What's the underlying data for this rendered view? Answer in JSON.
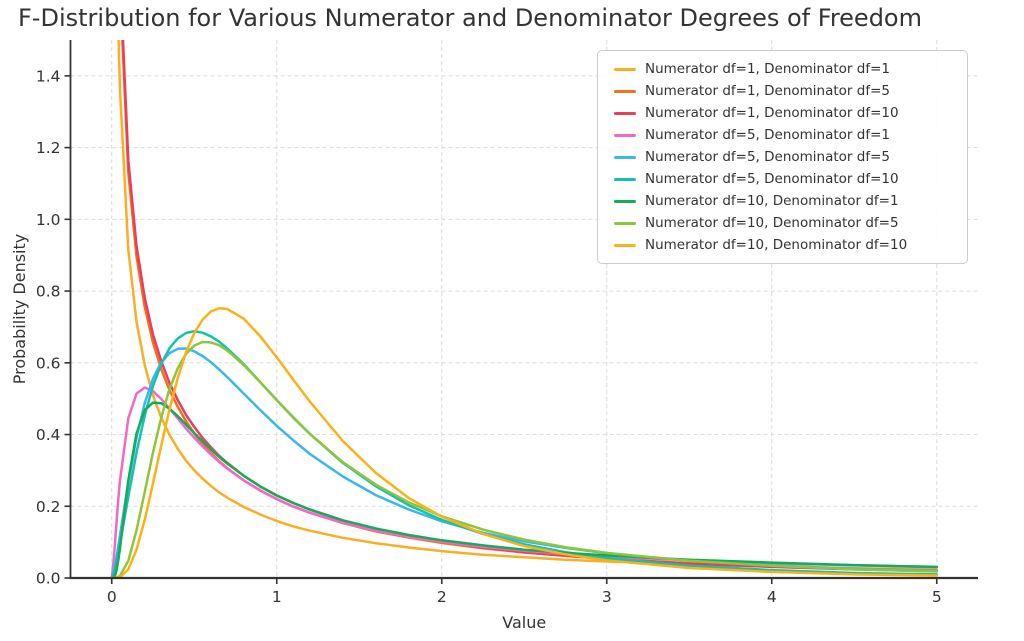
{
  "chart_data": {
    "type": "line",
    "title": "F-Distribution for Various Numerator and Denominator Degrees of Freedom",
    "xlabel": "Value",
    "ylabel": "Probability Density",
    "xlim": [
      -0.25,
      5.25
    ],
    "ylim": [
      0,
      1.5
    ],
    "xticks": [
      0,
      1,
      2,
      3,
      4,
      5
    ],
    "xtick_labels": [
      "0",
      "1",
      "2",
      "3",
      "4",
      "5"
    ],
    "yticks": [
      0.0,
      0.2,
      0.4,
      0.6,
      0.8,
      1.0,
      1.2,
      1.4
    ],
    "ytick_labels": [
      "0.0",
      "0.2",
      "0.4",
      "0.6",
      "0.8",
      "1.0",
      "1.2",
      "1.4"
    ],
    "grid": {
      "visible": true,
      "style": "dashed",
      "color": "#dcdcdc"
    },
    "legend_position": "upper right",
    "axis_color": "#333333",
    "x": [
      0,
      0.01,
      0.02,
      0.03,
      0.04,
      0.05,
      0.1,
      0.15,
      0.2,
      0.25,
      0.3,
      0.35,
      0.4,
      0.45,
      0.5,
      0.55,
      0.6,
      0.65,
      0.7,
      0.8,
      0.9,
      1.0,
      1.1,
      1.2,
      1.4,
      1.6,
      1.8,
      2.0,
      2.25,
      2.5,
      2.75,
      3.0,
      3.5,
      4.0,
      4.5,
      5.0
    ],
    "series": [
      {
        "name": "Numerator df=1, Denominator df=1",
        "color": "#fbae24",
        "y": [
          null,
          3.15,
          2.21,
          1.79,
          1.53,
          1.36,
          0.915,
          0.715,
          0.593,
          0.509,
          0.447,
          0.399,
          0.36,
          0.327,
          0.3,
          0.277,
          0.257,
          0.239,
          0.224,
          0.198,
          0.177,
          0.159,
          0.144,
          0.132,
          0.112,
          0.097,
          0.085,
          0.075,
          0.065,
          0.058,
          0.051,
          0.046,
          0.038,
          0.032,
          0.027,
          0.024
        ]
      },
      {
        "name": "Numerator df=1, Denominator df=5",
        "color": "#f3701d",
        "y": [
          null,
          3.77,
          2.65,
          2.15,
          1.85,
          1.65,
          1.131,
          0.897,
          0.755,
          0.656,
          0.582,
          0.524,
          0.477,
          0.437,
          0.403,
          0.374,
          0.349,
          0.326,
          0.306,
          0.272,
          0.244,
          0.22,
          0.199,
          0.182,
          0.153,
          0.13,
          0.113,
          0.098,
          0.083,
          0.071,
          0.062,
          0.054,
          0.041,
          0.033,
          0.026,
          0.021
        ]
      },
      {
        "name": "Numerator df=1, Denominator df=10",
        "color": "#eb3e5b",
        "y": [
          null,
          3.87,
          2.72,
          2.21,
          1.9,
          1.69,
          1.165,
          0.926,
          0.78,
          0.679,
          0.604,
          0.544,
          0.496,
          0.455,
          0.421,
          0.391,
          0.365,
          0.341,
          0.321,
          0.285,
          0.255,
          0.23,
          0.209,
          0.191,
          0.16,
          0.136,
          0.117,
          0.101,
          0.085,
          0.072,
          0.062,
          0.053,
          0.04,
          0.031,
          0.024,
          0.019
        ]
      },
      {
        "name": "Numerator df=5, Denominator df=1",
        "color": "#f666c9",
        "y": [
          0,
          0.041,
          0.101,
          0.162,
          0.22,
          0.272,
          0.445,
          0.514,
          0.531,
          0.521,
          0.499,
          0.472,
          0.445,
          0.417,
          0.391,
          0.367,
          0.345,
          0.324,
          0.305,
          0.272,
          0.244,
          0.22,
          0.199,
          0.182,
          0.154,
          0.132,
          0.115,
          0.101,
          0.087,
          0.076,
          0.067,
          0.06,
          0.049,
          0.041,
          0.035,
          0.03
        ]
      },
      {
        "name": "Numerator df=5, Denominator df=5",
        "color": "#3ab6f0",
        "y": [
          0,
          0.013,
          0.035,
          0.061,
          0.089,
          0.119,
          0.267,
          0.392,
          0.488,
          0.556,
          0.601,
          0.627,
          0.639,
          0.64,
          0.632,
          0.619,
          0.602,
          0.582,
          0.56,
          0.514,
          0.468,
          0.424,
          0.384,
          0.346,
          0.283,
          0.231,
          0.191,
          0.158,
          0.126,
          0.102,
          0.084,
          0.069,
          0.048,
          0.035,
          0.026,
          0.02
        ]
      },
      {
        "name": "Numerator df=5, Denominator df=10",
        "color": "#16c0b0",
        "y": [
          0,
          0.01,
          0.027,
          0.048,
          0.072,
          0.096,
          0.227,
          0.35,
          0.454,
          0.536,
          0.597,
          0.641,
          0.668,
          0.683,
          0.688,
          0.684,
          0.674,
          0.659,
          0.64,
          0.596,
          0.546,
          0.496,
          0.447,
          0.402,
          0.321,
          0.256,
          0.203,
          0.162,
          0.123,
          0.094,
          0.072,
          0.056,
          0.034,
          0.022,
          0.014,
          0.01
        ]
      },
      {
        "name": "Numerator df=10, Denominator df=1",
        "color": "#12ad5b",
        "y": [
          0,
          0.001,
          0.007,
          0.024,
          0.05,
          0.083,
          0.272,
          0.403,
          0.468,
          0.489,
          0.487,
          0.472,
          0.451,
          0.428,
          0.404,
          0.381,
          0.359,
          0.338,
          0.319,
          0.285,
          0.255,
          0.23,
          0.209,
          0.191,
          0.161,
          0.138,
          0.12,
          0.105,
          0.091,
          0.079,
          0.07,
          0.063,
          0.051,
          0.043,
          0.036,
          0.031
        ]
      },
      {
        "name": "Numerator df=10, Denominator df=5",
        "color": "#8cc63c",
        "y": [
          0,
          0.0,
          0.0,
          0.001,
          0.003,
          0.006,
          0.048,
          0.133,
          0.241,
          0.35,
          0.448,
          0.527,
          0.585,
          0.625,
          0.648,
          0.658,
          0.657,
          0.649,
          0.634,
          0.594,
          0.546,
          0.496,
          0.448,
          0.402,
          0.323,
          0.26,
          0.211,
          0.172,
          0.135,
          0.107,
          0.086,
          0.07,
          0.048,
          0.034,
          0.024,
          0.018
        ]
      },
      {
        "name": "Numerator df=10, Denominator df=10",
        "color": "#fcb114",
        "y": [
          0,
          0.0,
          0.0,
          0.0,
          0.001,
          0.002,
          0.024,
          0.079,
          0.163,
          0.264,
          0.37,
          0.47,
          0.558,
          0.629,
          0.683,
          0.72,
          0.743,
          0.752,
          0.75,
          0.723,
          0.674,
          0.615,
          0.553,
          0.492,
          0.382,
          0.293,
          0.223,
          0.171,
          0.123,
          0.089,
          0.066,
          0.049,
          0.028,
          0.017,
          0.01,
          0.007
        ]
      }
    ]
  }
}
